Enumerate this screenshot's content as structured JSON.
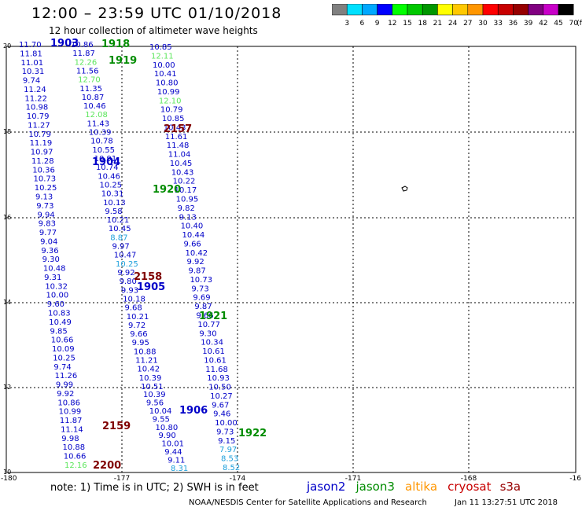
{
  "header": {
    "title": "12:00 – 23:59 UTC 01/10/2018",
    "subtitle": "12 hour collection of altimeter wave heights"
  },
  "colorbar": {
    "labels": [
      "3",
      "6",
      "9",
      "12",
      "15",
      "18",
      "21",
      "24",
      "27",
      "30",
      "33",
      "36",
      "39",
      "42",
      "45",
      "70",
      "(ft)"
    ],
    "colors": [
      "#808080",
      "#00e0ff",
      "#00a8ff",
      "#0000ff",
      "#00ff00",
      "#00c800",
      "#009600",
      "#ffff00",
      "#ffc800",
      "#ff9600",
      "#ff0000",
      "#c80000",
      "#960000",
      "#800080",
      "#c800c8",
      "#000000"
    ]
  },
  "axes": {
    "lon_labels": [
      "-180",
      "-177",
      "-174",
      "-171",
      "-168",
      "-16"
    ],
    "lat_labels": [
      "20",
      "18",
      "16",
      "14",
      "12",
      "10"
    ]
  },
  "footer": {
    "note": "note:  1) Time is in UTC;  2) SWH is in feet",
    "legend": [
      {
        "name": "jason2",
        "color": "#0000c8"
      },
      {
        "name": "jason3",
        "color": "#008c00"
      },
      {
        "name": "altika",
        "color": "#ff9600"
      },
      {
        "name": "cryosat",
        "color": "#c80000"
      },
      {
        "name": "s3a",
        "color": "#960000"
      }
    ],
    "credit": "NOAA/NESDIS Center for Satellite Applications and Research",
    "timestamp": "Jan 11 13:27:51 UTC 2018"
  },
  "track_labels": [
    {
      "text": "1903",
      "color": "#0000c8"
    },
    {
      "text": "1918",
      "color": "#008c00"
    },
    {
      "text": "1919",
      "color": "#008c00"
    },
    {
      "text": "2157",
      "color": "#800000"
    },
    {
      "text": "1904",
      "color": "#0000c8"
    },
    {
      "text": "1920",
      "color": "#008c00"
    },
    {
      "text": "2158",
      "color": "#800000"
    },
    {
      "text": "1905",
      "color": "#0000c8"
    },
    {
      "text": "1921",
      "color": "#008c00"
    },
    {
      "text": "1906",
      "color": "#0000c8"
    },
    {
      "text": "1922",
      "color": "#008c00"
    },
    {
      "text": "2159",
      "color": "#800000"
    },
    {
      "text": "2200",
      "color": "#800000"
    }
  ],
  "swh_colors": {
    "d": "#0000c8",
    "g": "#5ce65c",
    "c": "#1ea0dc"
  },
  "swh_columns": {
    "A": [
      [
        "11.70",
        "d"
      ],
      [
        "11.81",
        "d"
      ],
      [
        "11.01",
        "d"
      ],
      [
        "10.31",
        "d"
      ],
      [
        "9.74",
        "d"
      ],
      [
        "11.24",
        "d"
      ],
      [
        "11.22",
        "d"
      ],
      [
        "10.98",
        "d"
      ],
      [
        "10.79",
        "d"
      ],
      [
        "11.27",
        "d"
      ],
      [
        "10.79",
        "d"
      ],
      [
        "11.19",
        "d"
      ],
      [
        "10.97",
        "d"
      ],
      [
        "11.28",
        "d"
      ],
      [
        "10.36",
        "d"
      ],
      [
        "10.73",
        "d"
      ],
      [
        "10.25",
        "d"
      ],
      [
        "9.13",
        "d"
      ],
      [
        "9.73",
        "d"
      ],
      [
        "9.94",
        "d"
      ],
      [
        "9.83",
        "d"
      ],
      [
        "9.77",
        "d"
      ],
      [
        "9.04",
        "d"
      ],
      [
        "9.36",
        "d"
      ],
      [
        "9.30",
        "d"
      ],
      [
        "10.48",
        "d"
      ],
      [
        "9.31",
        "d"
      ],
      [
        "10.32",
        "d"
      ],
      [
        "10.00",
        "d"
      ],
      [
        "9.60",
        "d"
      ],
      [
        "10.83",
        "d"
      ],
      [
        "10.49",
        "d"
      ],
      [
        "9.85",
        "d"
      ],
      [
        "10.66",
        "d"
      ],
      [
        "10.09",
        "d"
      ],
      [
        "10.25",
        "d"
      ],
      [
        "9.74",
        "d"
      ],
      [
        "11.26",
        "d"
      ],
      [
        "9.99",
        "d"
      ],
      [
        "9.92",
        "d"
      ],
      [
        "10.86",
        "d"
      ],
      [
        "10.99",
        "d"
      ],
      [
        "11.87",
        "d"
      ],
      [
        "11.14",
        "d"
      ],
      [
        "9.98",
        "d"
      ],
      [
        "10.88",
        "d"
      ],
      [
        "10.66",
        "d"
      ],
      [
        "12.16",
        "g"
      ]
    ],
    "B": [
      [
        "10.86",
        "d"
      ],
      [
        "11.87",
        "d"
      ],
      [
        "12.26",
        "g"
      ],
      [
        "11.56",
        "d"
      ],
      [
        "12.70",
        "g"
      ],
      [
        "11.35",
        "d"
      ],
      [
        "10.87",
        "d"
      ],
      [
        "10.46",
        "d"
      ],
      [
        "12.08",
        "g"
      ],
      [
        "11.43",
        "d"
      ],
      [
        "10.39",
        "d"
      ],
      [
        "10.78",
        "d"
      ],
      [
        "10.55",
        "d"
      ],
      [
        "10.91",
        "d"
      ],
      [
        "10.74",
        "d"
      ],
      [
        "10.46",
        "d"
      ],
      [
        "10.25",
        "d"
      ],
      [
        "10.31",
        "d"
      ],
      [
        "10.13",
        "d"
      ],
      [
        "9.58",
        "d"
      ],
      [
        "10.21",
        "d"
      ],
      [
        "10.45",
        "d"
      ],
      [
        "8.87",
        "c"
      ],
      [
        "9.97",
        "d"
      ],
      [
        "10.47",
        "d"
      ],
      [
        "10.25",
        "c"
      ],
      [
        "9.92",
        "d"
      ],
      [
        "9.80",
        "d"
      ],
      [
        "9.93",
        "d"
      ],
      [
        "10.18",
        "d"
      ],
      [
        "9.68",
        "d"
      ],
      [
        "10.21",
        "d"
      ],
      [
        "9.72",
        "d"
      ],
      [
        "9.66",
        "d"
      ],
      [
        "9.95",
        "d"
      ],
      [
        "10.88",
        "d"
      ],
      [
        "11.21",
        "d"
      ],
      [
        "10.42",
        "d"
      ],
      [
        "10.39",
        "d"
      ],
      [
        "10.51",
        "d"
      ]
    ],
    "C": [
      [
        "10.85",
        "d"
      ],
      [
        "12.11",
        "g"
      ],
      [
        "10.00",
        "d"
      ],
      [
        "10.41",
        "d"
      ],
      [
        "10.80",
        "d"
      ],
      [
        "10.99",
        "d"
      ],
      [
        "12.10",
        "g"
      ],
      [
        "10.79",
        "d"
      ],
      [
        "10.85",
        "d"
      ],
      [
        "10.43",
        "d"
      ],
      [
        "11.61",
        "d"
      ],
      [
        "11.48",
        "d"
      ],
      [
        "11.04",
        "d"
      ],
      [
        "10.45",
        "d"
      ],
      [
        "10.43",
        "d"
      ],
      [
        "10.22",
        "d"
      ],
      [
        "10.17",
        "d"
      ],
      [
        "10.95",
        "d"
      ],
      [
        "9.82",
        "d"
      ],
      [
        "9.13",
        "d"
      ],
      [
        "10.40",
        "d"
      ],
      [
        "10.44",
        "d"
      ],
      [
        "9.66",
        "d"
      ],
      [
        "10.42",
        "d"
      ],
      [
        "9.92",
        "d"
      ],
      [
        "9.87",
        "d"
      ],
      [
        "10.73",
        "d"
      ],
      [
        "9.73",
        "d"
      ],
      [
        "9.69",
        "d"
      ],
      [
        "9.87",
        "d"
      ],
      [
        "9.66",
        "d"
      ],
      [
        "10.77",
        "d"
      ],
      [
        "9.30",
        "d"
      ],
      [
        "10.34",
        "d"
      ],
      [
        "10.61",
        "d"
      ],
      [
        "10.61",
        "d"
      ],
      [
        "11.68",
        "d"
      ],
      [
        "10.93",
        "d"
      ],
      [
        "10.50",
        "d"
      ],
      [
        "10.27",
        "d"
      ],
      [
        "9.67",
        "d"
      ],
      [
        "9.46",
        "d"
      ],
      [
        "10.00",
        "d"
      ],
      [
        "9.73",
        "d"
      ],
      [
        "9.15",
        "d"
      ],
      [
        "7.97",
        "c"
      ],
      [
        "8.53",
        "c"
      ],
      [
        "8.52",
        "c"
      ]
    ],
    "D": [
      [
        "10.39",
        "d"
      ],
      [
        "9.56",
        "d"
      ],
      [
        "10.04",
        "d"
      ],
      [
        "9.55",
        "d"
      ],
      [
        "10.80",
        "d"
      ],
      [
        "9.90",
        "d"
      ],
      [
        "10.01",
        "d"
      ],
      [
        "9.44",
        "d"
      ],
      [
        "9.11",
        "d"
      ],
      [
        "8.31",
        "c"
      ]
    ]
  }
}
